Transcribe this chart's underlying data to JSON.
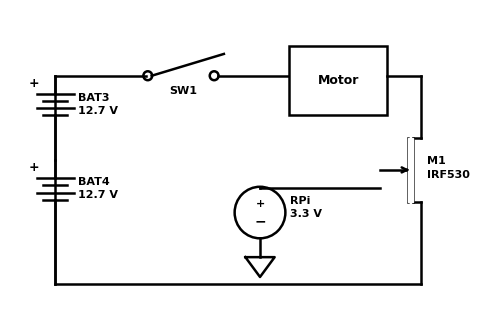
{
  "bg_color": "#ffffff",
  "line_color": "#000000",
  "lw": 1.8,
  "fs": 8,
  "bat3_label": "BAT3\n12.7 V",
  "bat4_label": "BAT4\n12.7 V",
  "rpi_label": "RPi\n3.3 V",
  "m1_label": "M1\nIRF530",
  "motor_label": "Motor",
  "sw1_label": "SW1"
}
